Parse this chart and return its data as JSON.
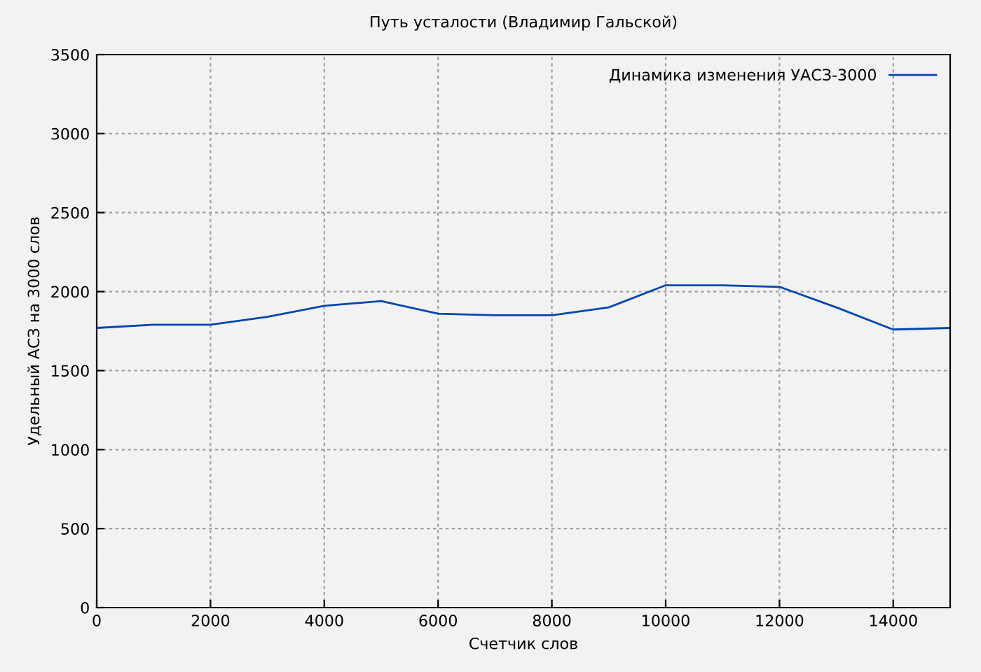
{
  "chart_data": {
    "type": "line",
    "title": "Путь усталости (Владимир Гальской)",
    "xlabel": "Счетчик слов",
    "ylabel": "Удельный АСЗ на 3000 слов",
    "x": [
      0,
      1000,
      2000,
      3000,
      4000,
      5000,
      6000,
      7000,
      8000,
      9000,
      10000,
      11000,
      12000,
      13000,
      14000,
      15000
    ],
    "series": [
      {
        "name": "Динамика изменения УАСЗ-3000",
        "color": "#0047ab",
        "values": [
          1770,
          1790,
          1790,
          1840,
          1910,
          1940,
          1860,
          1850,
          1850,
          1900,
          2040,
          2040,
          2030,
          1900,
          1760,
          1770
        ]
      }
    ],
    "xlim": [
      0,
      15000
    ],
    "xticks": [
      0,
      2000,
      4000,
      6000,
      8000,
      10000,
      12000,
      14000
    ],
    "ylim": [
      0,
      3500
    ],
    "yticks": [
      0,
      500,
      1000,
      1500,
      2000,
      2500,
      3000,
      3500
    ],
    "grid": true,
    "legend": "top right",
    "marker": "none",
    "line_style": "solid"
  }
}
